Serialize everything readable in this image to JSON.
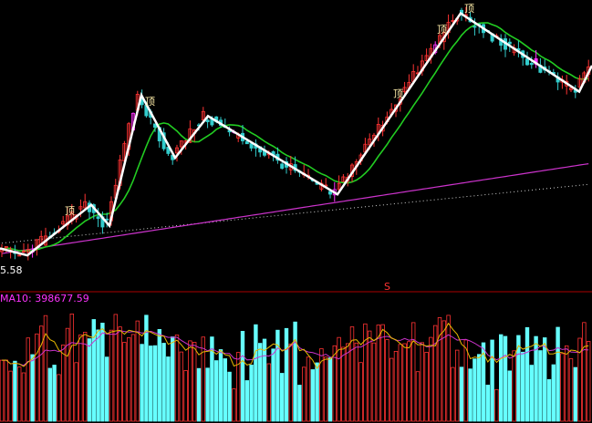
{
  "chart_data": [
    {
      "type": "candlestick",
      "price_low_label": "5.58",
      "top_marker_text": "顶",
      "signal_marker_text": "S",
      "zigzag_turns": [
        {
          "x": 0,
          "y": 6.0
        },
        {
          "x": 30,
          "y": 5.6
        },
        {
          "x": 100,
          "y": 8.5
        },
        {
          "x": 120,
          "y": 7.3
        },
        {
          "x": 155,
          "y": 14.8
        },
        {
          "x": 192,
          "y": 11.2
        },
        {
          "x": 228,
          "y": 13.6
        },
        {
          "x": 370,
          "y": 9.1
        },
        {
          "x": 505,
          "y": 19.5
        },
        {
          "x": 635,
          "y": 15.0
        },
        {
          "x": 649,
          "y": 16.5
        }
      ],
      "top_labels_at": [
        77,
        165,
        437,
        485,
        515
      ],
      "series": [
        {
          "color": "#d0d0d0",
          "style": "dotted"
        },
        {
          "color": "#cc33cc"
        },
        {
          "color": "#22cc22"
        },
        {
          "color": "#ffffff",
          "style": "zigzag"
        }
      ],
      "colors": {
        "up": "#ff3333",
        "down": "#33cccc",
        "special": "#ff33ff",
        "background": "#000000"
      }
    },
    {
      "type": "bar",
      "title": "MA10: 398677.59",
      "title_color": "#ff33ff",
      "bar_colors": {
        "up": "#ff3333",
        "down": "#66ffff"
      },
      "series": [
        {
          "color": "#cc33cc"
        },
        {
          "color": "#e6b800"
        }
      ]
    }
  ]
}
